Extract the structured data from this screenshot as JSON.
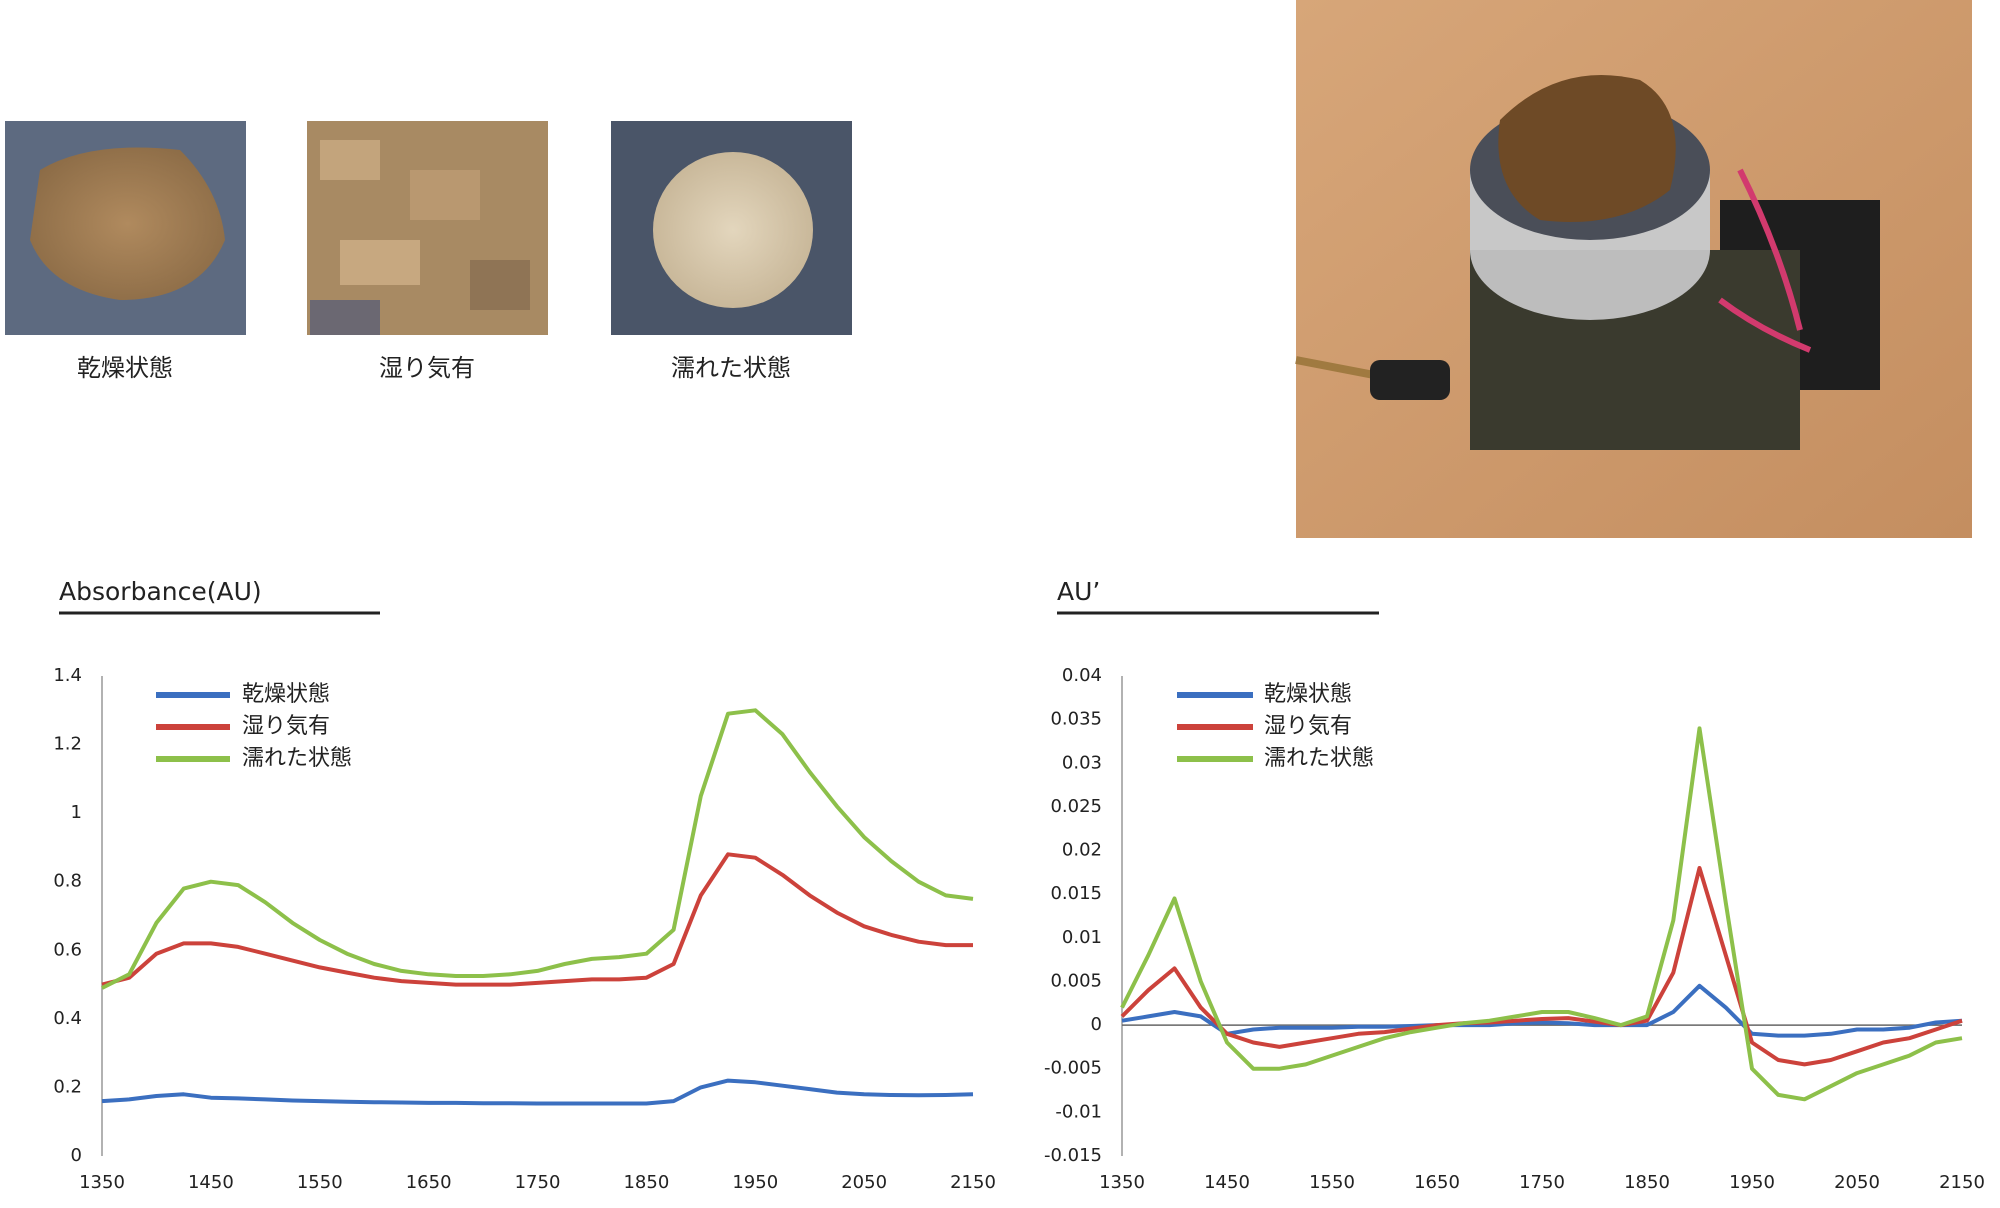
{
  "photos": {
    "captions": [
      "乾燥状態",
      "湿り気有",
      "濡れた状態"
    ]
  },
  "chart_data": [
    {
      "type": "line",
      "title": "Absorbance(AU)",
      "x": [
        1350,
        1375,
        1400,
        1425,
        1450,
        1475,
        1500,
        1525,
        1550,
        1575,
        1600,
        1625,
        1650,
        1675,
        1700,
        1725,
        1750,
        1775,
        1800,
        1825,
        1850,
        1875,
        1900,
        1925,
        1950,
        1975,
        2000,
        2025,
        2050,
        2075,
        2100,
        2125,
        2150
      ],
      "series": [
        {
          "name": "乾燥状態",
          "color": "#3b6fc0",
          "values": [
            0.16,
            0.165,
            0.175,
            0.18,
            0.17,
            0.168,
            0.165,
            0.162,
            0.16,
            0.158,
            0.157,
            0.156,
            0.155,
            0.155,
            0.154,
            0.154,
            0.153,
            0.153,
            0.153,
            0.153,
            0.153,
            0.16,
            0.2,
            0.22,
            0.215,
            0.205,
            0.195,
            0.185,
            0.18,
            0.178,
            0.177,
            0.178,
            0.18
          ]
        },
        {
          "name": "湿り気有",
          "color": "#cc423b",
          "values": [
            0.5,
            0.52,
            0.59,
            0.62,
            0.62,
            0.61,
            0.59,
            0.57,
            0.55,
            0.535,
            0.52,
            0.51,
            0.505,
            0.5,
            0.5,
            0.5,
            0.505,
            0.51,
            0.515,
            0.515,
            0.52,
            0.56,
            0.76,
            0.88,
            0.87,
            0.82,
            0.76,
            0.71,
            0.67,
            0.645,
            0.625,
            0.615,
            0.615
          ]
        },
        {
          "name": "濡れた状態",
          "color": "#8dc04a",
          "values": [
            0.49,
            0.53,
            0.68,
            0.78,
            0.8,
            0.79,
            0.74,
            0.68,
            0.63,
            0.59,
            0.56,
            0.54,
            0.53,
            0.525,
            0.525,
            0.53,
            0.54,
            0.56,
            0.575,
            0.58,
            0.59,
            0.66,
            1.05,
            1.29,
            1.3,
            1.23,
            1.12,
            1.02,
            0.93,
            0.86,
            0.8,
            0.76,
            0.75
          ]
        }
      ],
      "xlim": [
        1350,
        2150
      ],
      "xticks": [
        1350,
        1450,
        1550,
        1650,
        1750,
        1850,
        1950,
        2050,
        2150
      ],
      "ylim": [
        0,
        1.4
      ],
      "yticks": [
        0,
        0.2,
        0.4,
        0.6,
        0.8,
        1,
        1.2,
        1.4
      ],
      "grid": false,
      "zero_line": false,
      "legend": "top-left"
    },
    {
      "type": "line",
      "title": "AU’",
      "x": [
        1350,
        1375,
        1400,
        1425,
        1450,
        1475,
        1500,
        1525,
        1550,
        1575,
        1600,
        1625,
        1650,
        1675,
        1700,
        1725,
        1750,
        1775,
        1800,
        1825,
        1850,
        1875,
        1900,
        1925,
        1950,
        1975,
        2000,
        2025,
        2050,
        2075,
        2100,
        2125,
        2150
      ],
      "series": [
        {
          "name": "乾燥状態",
          "color": "#3b6fc0",
          "values": [
            0.0005,
            0.001,
            0.0015,
            0.001,
            -0.001,
            -0.0005,
            -0.0003,
            -0.0003,
            -0.0003,
            -0.0002,
            -0.0002,
            -0.0001,
            0,
            0,
            0,
            0.0002,
            0.0003,
            0.0002,
            0,
            0,
            0,
            0.0015,
            0.0045,
            0.002,
            -0.001,
            -0.0012,
            -0.0012,
            -0.001,
            -0.0005,
            -0.0005,
            -0.0003,
            0.0003,
            0.0005
          ]
        },
        {
          "name": "湿り気有",
          "color": "#cc423b",
          "values": [
            0.001,
            0.004,
            0.0065,
            0.002,
            -0.001,
            -0.002,
            -0.0025,
            -0.002,
            -0.0015,
            -0.001,
            -0.0008,
            -0.0004,
            0,
            0.0002,
            0.0003,
            0.0005,
            0.0007,
            0.0008,
            0.0004,
            0,
            0.0005,
            0.006,
            0.018,
            0.008,
            -0.002,
            -0.004,
            -0.0045,
            -0.004,
            -0.003,
            -0.002,
            -0.0015,
            -0.0005,
            0.0005
          ]
        },
        {
          "name": "濡れた状態",
          "color": "#8dc04a",
          "values": [
            0.002,
            0.008,
            0.0145,
            0.005,
            -0.002,
            -0.005,
            -0.005,
            -0.0045,
            -0.0035,
            -0.0025,
            -0.0015,
            -0.0008,
            -0.0003,
            0.0002,
            0.0005,
            0.001,
            0.0015,
            0.0015,
            0.0008,
            0,
            0.001,
            0.012,
            0.034,
            0.014,
            -0.005,
            -0.008,
            -0.0085,
            -0.007,
            -0.0055,
            -0.0045,
            -0.0035,
            -0.002,
            -0.0015
          ]
        }
      ],
      "xlim": [
        1350,
        2150
      ],
      "xticks": [
        1350,
        1450,
        1550,
        1650,
        1750,
        1850,
        1950,
        2050,
        2150
      ],
      "ylim": [
        -0.015,
        0.04
      ],
      "yticks": [
        -0.015,
        -0.01,
        -0.005,
        0,
        0.005,
        0.01,
        0.015,
        0.02,
        0.025,
        0.03,
        0.035,
        0.04
      ],
      "grid": false,
      "zero_line": true,
      "legend": "top-left"
    }
  ]
}
